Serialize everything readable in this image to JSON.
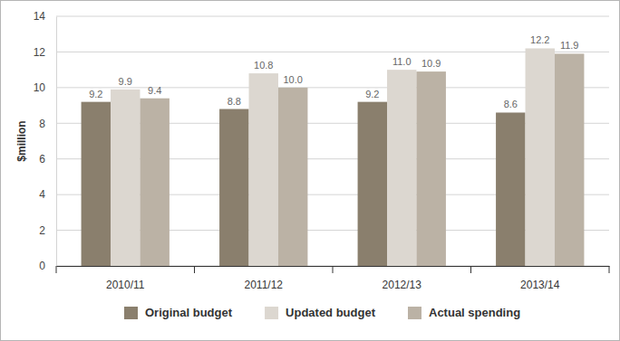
{
  "chart_data": {
    "type": "bar",
    "y_label": "$million",
    "categories": [
      "2010/11",
      "2011/12",
      "2012/13",
      "2013/14"
    ],
    "series": [
      {
        "name": "Original budget",
        "color": "#8a7f6d",
        "values": [
          9.2,
          8.8,
          9.2,
          8.6
        ],
        "value_labels": [
          "9.2",
          "8.8",
          "9.2",
          "8.6"
        ]
      },
      {
        "name": "Updated budget",
        "color": "#dcd7d0",
        "values": [
          9.9,
          10.8,
          11.0,
          12.2
        ],
        "value_labels": [
          "9.9",
          "10.8",
          "11.0",
          "12.2"
        ]
      },
      {
        "name": "Actual spending",
        "color": "#bbb2a5",
        "values": [
          9.4,
          10.0,
          10.9,
          11.9
        ],
        "value_labels": [
          "9.4",
          "10.0",
          "10.9",
          "11.9"
        ]
      }
    ],
    "ylim": [
      0,
      14
    ],
    "yticks": [
      0,
      2,
      4,
      6,
      8,
      10,
      12,
      14
    ],
    "grid": true,
    "data_labels": true,
    "legend": "bottom"
  }
}
